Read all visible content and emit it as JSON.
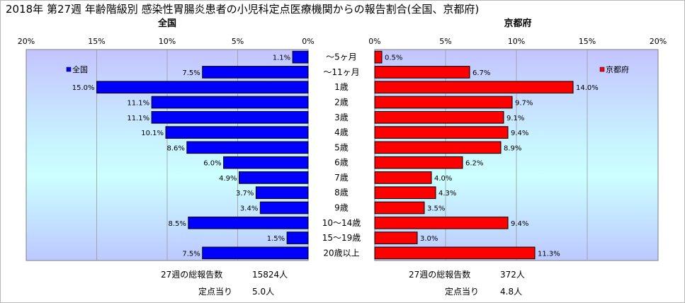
{
  "chart_data": {
    "type": "bar",
    "orientation": "horizontal",
    "title": "2018年 第27週 年齢階級別 感染性胃腸炎患者の小児科定点医療機関からの報告割合(全国、京都府)",
    "categories": [
      "～5ヶ月",
      "～11ヶ月",
      "1歳",
      "2歳",
      "3歳",
      "4歳",
      "5歳",
      "6歳",
      "7歳",
      "8歳",
      "9歳",
      "10～14歳",
      "15～19歳",
      "20歳以上"
    ],
    "xlim": [
      0,
      20
    ],
    "x_ticks": [
      "20%",
      "15%",
      "10%",
      "5%",
      "0%"
    ],
    "x_ticks_right": [
      "0%",
      "5%",
      "10%",
      "15%",
      "20%"
    ],
    "grid": true,
    "panels": [
      {
        "side": "left",
        "title": "全国",
        "legend": "全国",
        "legend_position": "top-left",
        "color": "#0000ff",
        "values": [
          1.1,
          7.5,
          15.0,
          11.1,
          11.1,
          10.1,
          8.6,
          6.0,
          4.9,
          3.7,
          3.4,
          8.5,
          1.5,
          7.5
        ],
        "labels": [
          "1.1%",
          "7.5%",
          "15.0%",
          "11.1%",
          "11.1%",
          "10.1%",
          "8.6%",
          "6.0%",
          "4.9%",
          "3.7%",
          "3.4%",
          "8.5%",
          "1.5%",
          "7.5%"
        ]
      },
      {
        "side": "right",
        "title": "京都府",
        "legend": "京都府",
        "legend_position": "top-right",
        "color": "#ff0000",
        "values": [
          0.5,
          6.7,
          14.0,
          9.7,
          9.1,
          9.4,
          8.9,
          6.2,
          4.0,
          4.3,
          3.5,
          9.4,
          3.0,
          11.3
        ],
        "labels": [
          "0.5%",
          "6.7%",
          "14.0%",
          "9.7%",
          "9.1%",
          "9.4%",
          "8.9%",
          "6.2%",
          "4.0%",
          "4.3%",
          "3.5%",
          "9.4%",
          "3.0%",
          "11.3%"
        ]
      }
    ]
  },
  "footer": {
    "left": {
      "total_label": "27週の総報告数",
      "total_value": "15824人",
      "per_label": "定点当り",
      "per_value": "5.0人"
    },
    "right": {
      "total_label": "27週の総報告数",
      "total_value": "372人",
      "per_label": "定点当り",
      "per_value": "4.8人"
    }
  }
}
